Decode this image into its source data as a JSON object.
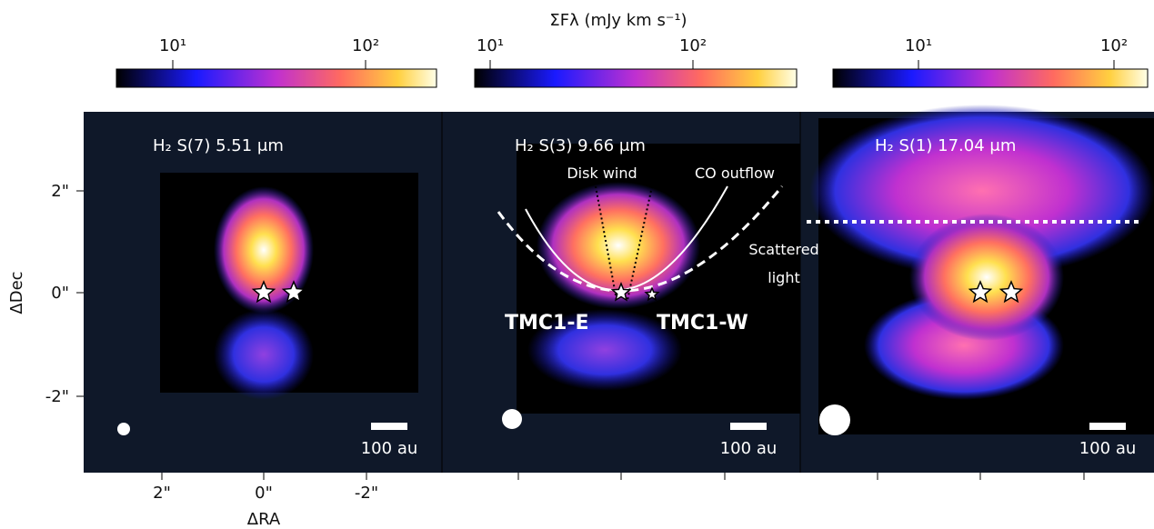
{
  "colorbar_label": "ΣFλ (mJy km s⁻¹)",
  "panels": [
    {
      "title": "H₂ S(7) 5.51 μm",
      "colorbar_ticks": [
        "10¹",
        "10²"
      ],
      "scalebar": "100 au"
    },
    {
      "title": "H₂ S(3) 9.66 μm",
      "colorbar_ticks": [
        "10¹",
        "10²"
      ],
      "scalebar": "100 au"
    },
    {
      "title": "H₂ S(1) 17.04 μm",
      "colorbar_ticks": [
        "10¹",
        "10²"
      ],
      "scalebar": "100 au"
    }
  ],
  "annotations": {
    "disk_wind": "Disk wind",
    "co_outflow": "CO outflow",
    "scattered_light": [
      "Scattered",
      "light"
    ],
    "source_east": "TMC1-E",
    "source_west": "TMC1-W"
  },
  "y_axis": {
    "label": "ΔDec",
    "ticks": [
      "2\"",
      "0\"",
      "-2\""
    ]
  },
  "x_axis": {
    "label": "ΔRA",
    "ticks": [
      "2\"",
      "0\"",
      "-2\""
    ]
  }
}
